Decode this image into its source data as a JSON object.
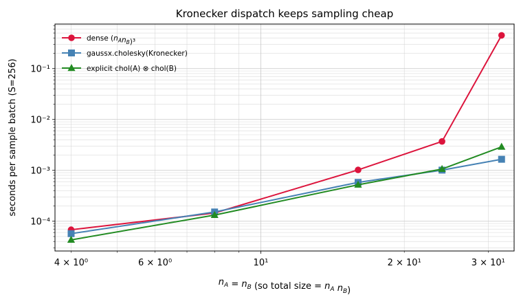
{
  "chart_data": {
    "type": "line",
    "title": "Kronecker dispatch keeps sampling cheap",
    "xlabel": "n_A = n_B  (so total size  = n_A n_B)",
    "ylabel": "seconds per sample batch (S=256)",
    "xscale": "log",
    "yscale": "log",
    "xlim": [
      3.7,
      34
    ],
    "ylim": [
      2.6e-05,
      0.75
    ],
    "grid": true,
    "legend_position": "top-left",
    "x": [
      4,
      8,
      16,
      24,
      32
    ],
    "x_tick_labels": [
      "4 × 10⁰",
      "6 × 10⁰",
      "10¹",
      "2 × 10¹",
      "3 × 10¹"
    ],
    "y_tick_labels": [
      "10⁻⁴",
      "10⁻³",
      "10⁻²",
      "10⁻¹"
    ],
    "series": [
      {
        "name": "dense (n_A n_B)³",
        "color": "#dc143c",
        "marker": "circle",
        "values": [
          6.8e-05,
          0.000145,
          0.00102,
          0.0037,
          0.45
        ]
      },
      {
        "name": "gaussx.cholesky(Kronecker)",
        "color": "#4682b4",
        "marker": "square",
        "values": [
          5.7e-05,
          0.000152,
          0.00058,
          0.00101,
          0.00165
        ]
      },
      {
        "name": "explicit chol(A) ⊗ chol(B)",
        "color": "#228b22",
        "marker": "triangle",
        "values": [
          4.3e-05,
          0.000132,
          0.00052,
          0.00106,
          0.0029
        ]
      }
    ]
  }
}
